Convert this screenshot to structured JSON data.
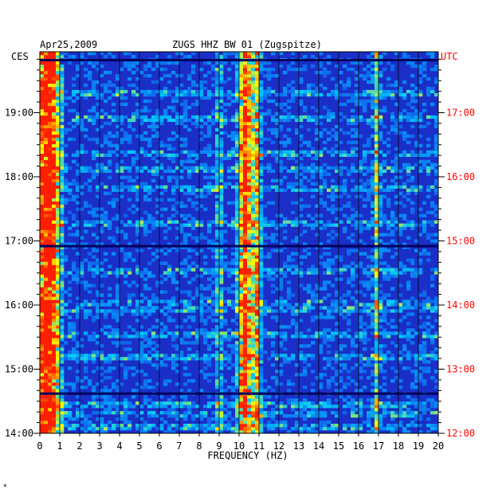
{
  "chart_data": {
    "type": "heatmap",
    "title_left": "Apr25,2009",
    "title_center": "ZUGS HHZ BW 01 (Zugspitze)",
    "left_axis_label": "CES",
    "right_axis_label": "UTC",
    "xlabel": "FREQUENCY (HZ)",
    "xlim": [
      0,
      20
    ],
    "x_ticks": [
      "0",
      "1",
      "2",
      "3",
      "4",
      "5",
      "6",
      "7",
      "8",
      "9",
      "10",
      "11",
      "12",
      "13",
      "14",
      "15",
      "16",
      "17",
      "18",
      "19",
      "20"
    ],
    "y_ticks_left": [
      "19:00",
      "18:00",
      "17:00",
      "16:00",
      "15:00",
      "14:00"
    ],
    "y_ticks_right": [
      "17:00",
      "16:00",
      "15:00",
      "14:00",
      "13:00",
      "12:00"
    ],
    "y_tick_hours_from_bottom": [
      5,
      4,
      3,
      2,
      1,
      0
    ],
    "time_range_hours": [
      0,
      5.95
    ],
    "colors": {
      "background": "#1a2fc8",
      "low": "#0000a0",
      "mid": "#00c8ff",
      "high": "#ffff00",
      "peak": "#ff2000",
      "left_axis": "#000000",
      "right_axis": "#ff0000"
    },
    "energy_bands_hz": [
      {
        "center": 0.4,
        "width": 0.6,
        "intensity": 0.95
      },
      {
        "center": 9.0,
        "width": 0.1,
        "intensity": 0.55
      },
      {
        "center": 10.3,
        "width": 0.35,
        "intensity": 0.75
      },
      {
        "center": 10.9,
        "width": 0.2,
        "intensity": 0.55
      },
      {
        "center": 16.9,
        "width": 0.15,
        "intensity": 0.4
      }
    ],
    "bright_rows_hours": [
      0.1,
      0.3,
      0.45,
      1.2,
      1.55,
      1.95,
      2.05,
      2.55,
      3.25,
      3.8,
      4.1,
      4.35,
      4.9,
      5.3
    ]
  },
  "footer_mark": "*"
}
